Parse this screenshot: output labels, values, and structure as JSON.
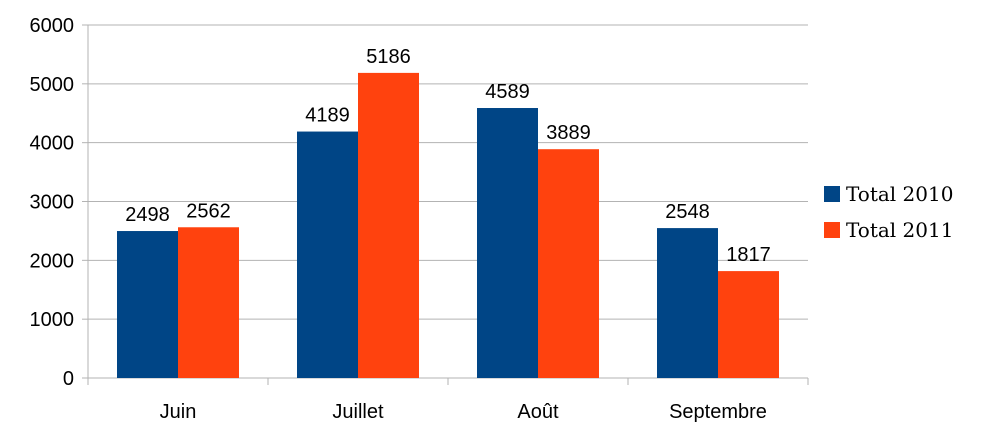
{
  "chart_data": {
    "type": "bar",
    "categories": [
      "Juin",
      "Juillet",
      "Août",
      "Septembre"
    ],
    "series": [
      {
        "name": "Total 2010",
        "values": [
          2498,
          4189,
          4589,
          2548
        ],
        "color": "#004586"
      },
      {
        "name": "Total 2011",
        "values": [
          2562,
          5186,
          3889,
          1817
        ],
        "color": "#ff420e"
      }
    ],
    "yticks": [
      0,
      1000,
      2000,
      3000,
      4000,
      5000,
      6000
    ],
    "ylim": [
      0,
      6000
    ],
    "grid": true,
    "legend_position": "right",
    "title": "",
    "xlabel": "",
    "ylabel": ""
  }
}
